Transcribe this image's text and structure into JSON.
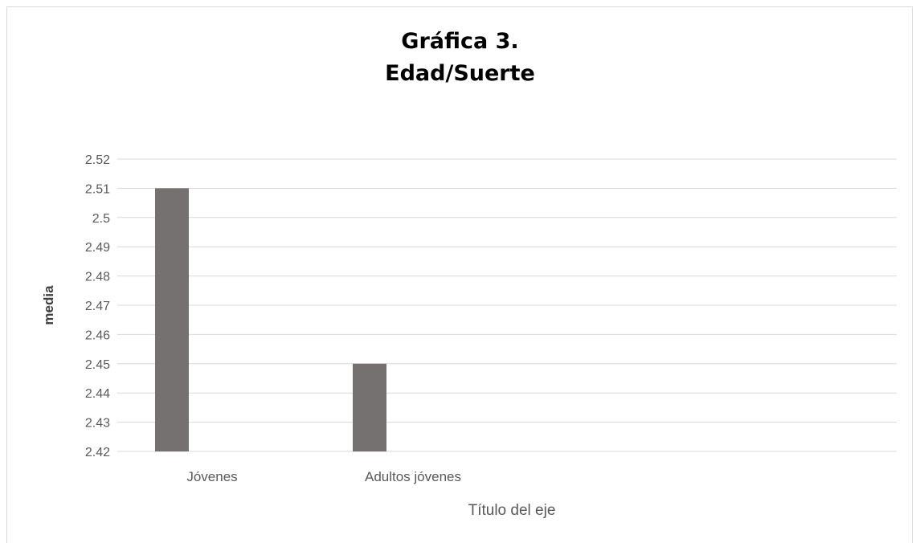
{
  "chart_data": {
    "type": "bar",
    "title_lines": [
      "Gráfica 3.",
      "Edad/Suerte"
    ],
    "categories": [
      "Jóvenes",
      "Adultos jóvenes"
    ],
    "series": [
      {
        "values": [
          2.51,
          2.45
        ]
      }
    ],
    "xlabel": "Título del eje",
    "ylabel": "media",
    "ylim": [
      2.42,
      2.52
    ],
    "yticks": [
      "2.42",
      "2.43",
      "2.44",
      "2.45",
      "2.46",
      "2.47",
      "2.48",
      "2.49",
      "2.5",
      "2.51",
      "2.52"
    ],
    "grid": true,
    "bar_color": "#767171",
    "grid_color": "#d9d9d9"
  }
}
